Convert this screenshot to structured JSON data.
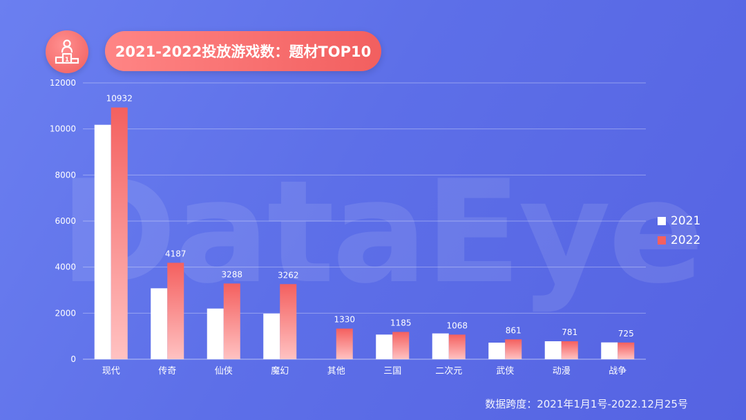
{
  "header": {
    "title": "2021-2022投放游戏数：题材TOP10",
    "icon": "podium-icon"
  },
  "watermark": "DataEye",
  "footer": {
    "note": "数据跨度：2021年1月1号-2022.12月25号"
  },
  "colors": {
    "series_2021": "#ffffff",
    "series_2022": "#f4605f",
    "grid": "rgba(255,255,255,0.35)",
    "text": "#ffffff"
  },
  "chart_data": {
    "type": "bar",
    "categories": [
      "现代",
      "传奇",
      "仙侠",
      "魔幻",
      "其他",
      "三国",
      "二次元",
      "武侠",
      "动漫",
      "战争"
    ],
    "series": [
      {
        "name": "2021",
        "values": [
          10180,
          3080,
          2200,
          1980,
          null,
          1070,
          1120,
          720,
          780,
          730
        ]
      },
      {
        "name": "2022",
        "values": [
          10932,
          4187,
          3288,
          3262,
          1330,
          1185,
          1068,
          861,
          781,
          725
        ]
      }
    ],
    "data_labels_series": "2022",
    "yticks": [
      0,
      2000,
      4000,
      6000,
      8000,
      10000,
      12000
    ],
    "ylim": [
      0,
      12000
    ],
    "grid": true,
    "legend": "right",
    "title": "",
    "xlabel": "",
    "ylabel": ""
  }
}
